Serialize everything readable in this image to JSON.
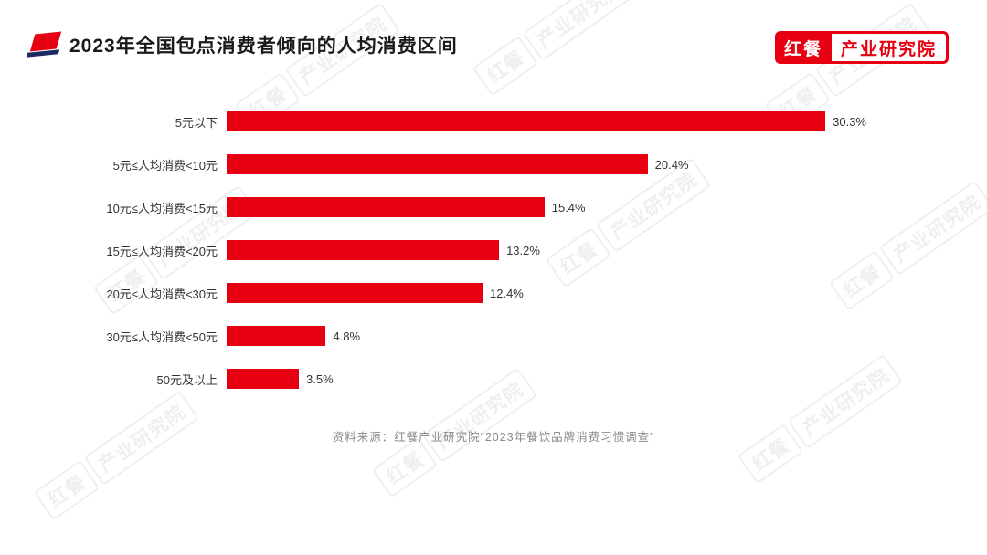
{
  "page": {
    "title": "2023年全国包点消费者倾向的人均消费区间",
    "source": "资料来源：红餐产业研究院“2023年餐饮品牌消费习惯调查”"
  },
  "logo": {
    "brand": "红餐",
    "institute": "产业研究院"
  },
  "watermark": {
    "brand": "红餐",
    "institute": "产业研究院"
  },
  "colors": {
    "bar": "#e60012",
    "accent_navy": "#1b2a63"
  },
  "chart_data": {
    "type": "bar",
    "orientation": "horizontal",
    "title": "2023年全国包点消费者倾向的人均消费区间",
    "categories": [
      "5元以下",
      "5元≤人均消费<10元",
      "10元≤人均消费<15元",
      "15元≤人均消费<20元",
      "20元≤人均消费<30元",
      "30元≤人均消费<50元",
      "50元及以上"
    ],
    "values": [
      30.3,
      20.4,
      15.4,
      13.2,
      12.4,
      4.8,
      3.5
    ],
    "value_labels": [
      "30.3%",
      "20.4%",
      "15.4%",
      "13.2%",
      "12.4%",
      "4.8%",
      "3.5%"
    ],
    "xlabel": "",
    "ylabel": "",
    "xlim": [
      0,
      31
    ],
    "grid": false,
    "legend": false
  }
}
